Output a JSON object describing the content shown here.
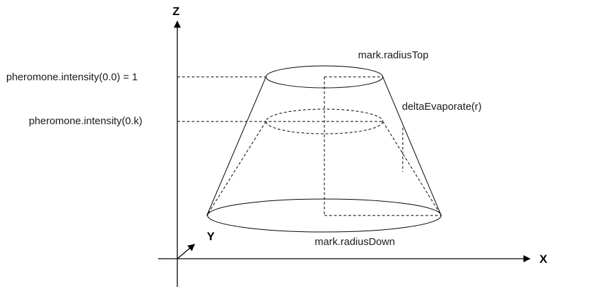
{
  "axes": {
    "z_label": "Z",
    "x_label": "X",
    "y_label": "Y"
  },
  "labels": {
    "radius_top": "mark.radiusTop",
    "radius_down": "mark.radiusDown",
    "delta_evaporate": "deltaEvaporate(r)",
    "intensity_initial": "pheromone.intensity(0.0) = 1",
    "intensity_k": "pheromone.intensity(0.k)"
  },
  "colors": {
    "stroke": "#000000",
    "text": "#1a1a1a",
    "background": "#ffffff"
  }
}
